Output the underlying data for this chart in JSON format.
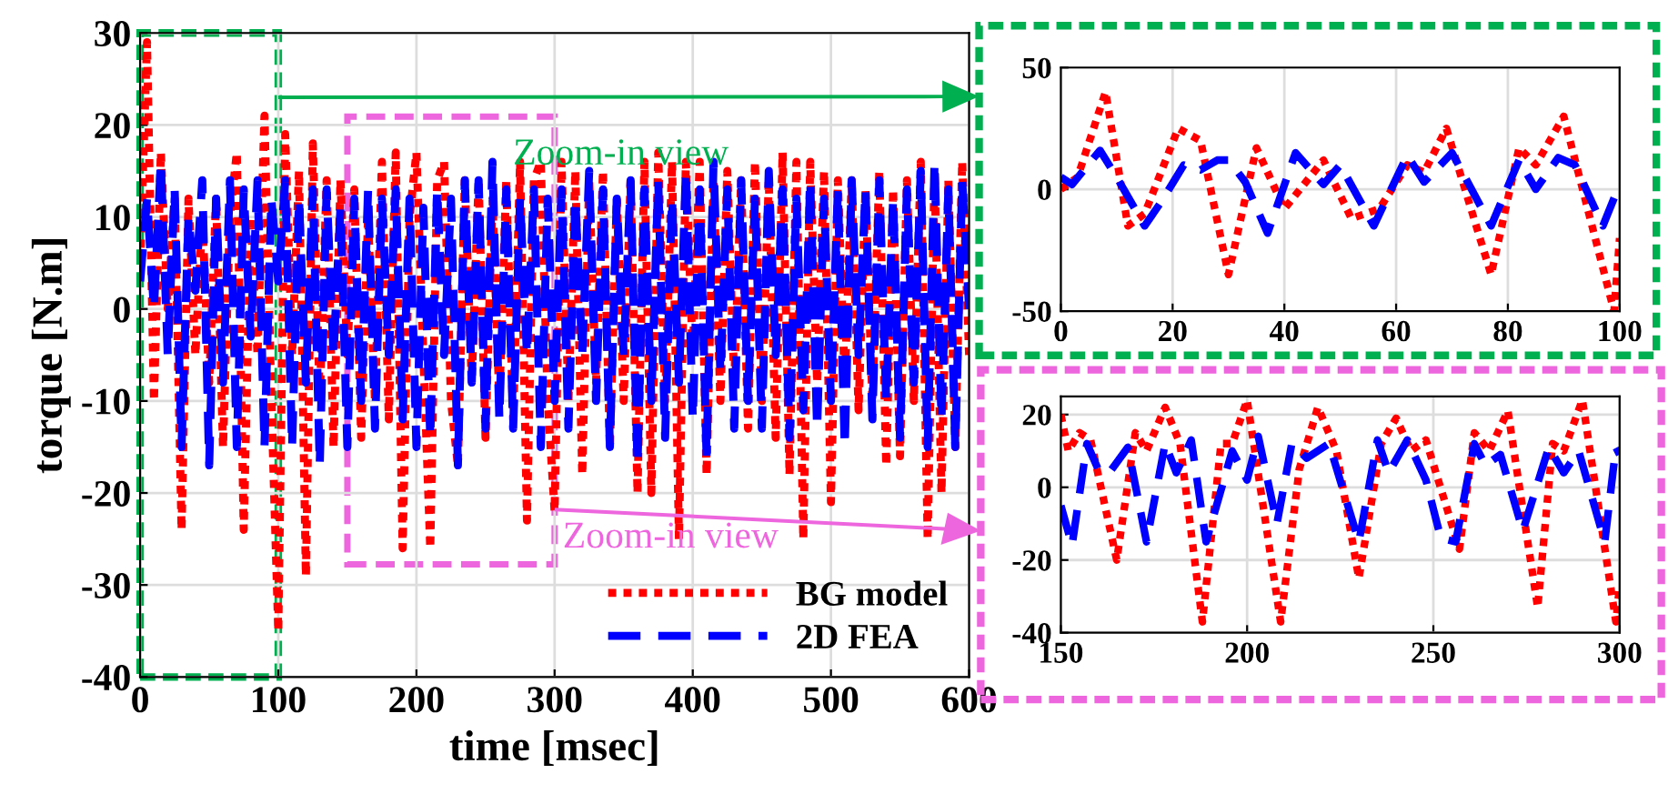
{
  "chart_data": [
    {
      "type": "line",
      "xlabel": "time [msec]",
      "ylabel": "torque [N.m]",
      "xlim": [
        0,
        600
      ],
      "xticks": [
        0,
        100,
        200,
        300,
        400,
        500,
        600
      ],
      "ylim": [
        -40,
        30
      ],
      "yticks": [
        {
          "value": -40,
          "label": "-40"
        },
        {
          "value": -30,
          "label": "-30"
        },
        {
          "value": -20,
          "label": "-20"
        },
        {
          "value": -10,
          "label": "-10"
        },
        0,
        10,
        20,
        30
      ],
      "grid": true,
      "legend": "bottom right",
      "annotations": [
        "Zoom-in view",
        "Zoom-in view"
      ],
      "x": [
        0,
        5,
        10,
        15,
        20,
        25,
        30,
        35,
        40,
        45,
        50,
        55,
        60,
        65,
        70,
        75,
        80,
        85,
        90,
        95,
        100,
        105,
        110,
        115,
        120,
        125,
        130,
        135,
        140,
        145,
        150,
        155,
        160,
        165,
        170,
        175,
        180,
        185,
        190,
        195,
        200,
        205,
        210,
        215,
        220,
        225,
        230,
        235,
        240,
        245,
        250,
        255,
        260,
        265,
        270,
        275,
        280,
        285,
        290,
        295,
        300,
        305,
        310,
        315,
        320,
        325,
        330,
        335,
        340,
        345,
        350,
        355,
        360,
        365,
        370,
        375,
        380,
        385,
        390,
        395,
        400,
        405,
        410,
        415,
        420,
        425,
        430,
        435,
        440,
        445,
        450,
        455,
        460,
        465,
        470,
        475,
        480,
        485,
        490,
        495,
        500,
        505,
        510,
        515,
        520,
        525,
        530,
        535,
        540,
        545,
        550,
        555,
        560,
        565,
        570,
        575,
        580,
        585,
        590,
        595,
        600
      ],
      "series": [
        {
          "name": "BG model",
          "color": "#ff0000",
          "line_style": "dotted",
          "values": [
            5,
            29,
            -10,
            17,
            0,
            12,
            -24,
            12,
            -5,
            10,
            -8,
            12,
            -15,
            10,
            17,
            -24,
            10,
            -5,
            21,
            -10,
            -35,
            19,
            -5,
            15,
            -29,
            18,
            -10,
            14,
            -15,
            14,
            -5,
            13,
            -14,
            10,
            -10,
            16,
            -12,
            17,
            -26,
            10,
            17,
            -5,
            -26,
            14,
            16,
            -10,
            -17,
            14,
            -8,
            14,
            -14,
            12,
            -10,
            14,
            -12,
            16,
            -23,
            14,
            16,
            -10,
            -22,
            16,
            -10,
            15,
            -18,
            14,
            -8,
            15,
            -15,
            12,
            -10,
            14,
            -20,
            16,
            -20,
            17,
            -10,
            16,
            -25,
            16,
            -5,
            16,
            -18,
            14,
            -10,
            15,
            -8,
            14,
            -13,
            16,
            -10,
            14,
            -14,
            17,
            -18,
            16,
            -25,
            16,
            -8,
            15,
            -21,
            14,
            -8,
            14,
            -11,
            13,
            -10,
            15,
            -17,
            13,
            -16,
            14,
            -10,
            16,
            -25,
            15,
            -20,
            14,
            -15,
            16,
            -5
          ]
        },
        {
          "name": "2D FEA",
          "color": "#0000ff",
          "line_style": "dashed",
          "values": [
            3,
            12,
            0,
            16,
            -5,
            13,
            -15,
            10,
            2,
            14,
            -17,
            12,
            -8,
            14,
            -15,
            13,
            -3,
            14,
            -15,
            12,
            3,
            14,
            -15,
            12,
            -8,
            13,
            -17,
            13,
            -5,
            11,
            -15,
            12,
            -10,
            13,
            -13,
            12,
            -5,
            13,
            -12,
            12,
            -15,
            11,
            -14,
            13,
            -5,
            12,
            -17,
            14,
            -8,
            14,
            -13,
            16,
            -12,
            13,
            -13,
            12,
            -5,
            13,
            -15,
            12,
            -10,
            13,
            -13,
            12,
            -5,
            15,
            -10,
            13,
            -15,
            12,
            -5,
            14,
            -17,
            13,
            -10,
            14,
            -14,
            12,
            -8,
            15,
            -12,
            13,
            -16,
            16,
            -7,
            13,
            -13,
            14,
            -10,
            12,
            -13,
            15,
            -5,
            13,
            -14,
            12,
            -11,
            14,
            -13,
            12,
            -10,
            13,
            -15,
            14,
            -5,
            13,
            -12,
            14,
            -10,
            12,
            -14,
            13,
            -8,
            15,
            -15,
            16,
            -12,
            13,
            -15,
            14,
            0
          ]
        }
      ]
    },
    {
      "type": "line",
      "xlim": [
        0,
        100
      ],
      "xticks": [
        0,
        20,
        40,
        60,
        80,
        100
      ],
      "ylim": [
        -50,
        50
      ],
      "yticks": [
        {
          "value": -50,
          "label": "-50"
        },
        0,
        50
      ],
      "grid": true,
      "series": [
        {
          "color": "#ff0000",
          "line_style": "dotted",
          "x": [
            0,
            3,
            8,
            12,
            15,
            21,
            25,
            30,
            35,
            40,
            47,
            52,
            57,
            62,
            65,
            69,
            77,
            82,
            85,
            90,
            99,
            100
          ],
          "values": [
            0,
            5,
            40,
            -15,
            -10,
            25,
            20,
            -35,
            17,
            -8,
            12,
            -12,
            -8,
            10,
            7,
            25,
            -35,
            17,
            10,
            30,
            -50,
            -20
          ]
        },
        {
          "color": "#0000ff",
          "line_style": "dashed",
          "x": [
            0,
            2,
            7,
            10,
            15,
            18,
            22,
            25,
            28,
            30,
            33,
            37,
            42,
            47,
            50,
            56,
            62,
            65,
            70,
            77,
            82,
            85,
            89,
            92,
            97,
            100
          ],
          "values": [
            5,
            2,
            16,
            5,
            -15,
            -5,
            10,
            8,
            12,
            12,
            3,
            -18,
            15,
            2,
            10,
            -15,
            14,
            3,
            15,
            -15,
            12,
            0,
            13,
            10,
            -15,
            2
          ]
        }
      ]
    },
    {
      "type": "line",
      "xlim": [
        150,
        300
      ],
      "xticks": [
        150,
        200,
        250,
        300
      ],
      "ylim": [
        -40,
        25
      ],
      "yticks": [
        {
          "value": -40,
          "label": "-40"
        },
        {
          "value": -20,
          "label": "-20"
        },
        0,
        20
      ],
      "grid": true,
      "series": [
        {
          "color": "#ff0000",
          "line_style": "dotted",
          "x": [
            150,
            152,
            155,
            158,
            165,
            170,
            173,
            178,
            182,
            188,
            193,
            196,
            200,
            209,
            214,
            219,
            224,
            230,
            236,
            240,
            244,
            248,
            257,
            261,
            265,
            270,
            278,
            282,
            285,
            290,
            299,
            300
          ],
          "values": [
            20,
            10,
            15,
            13,
            -20,
            15,
            10,
            22,
            12,
            -37,
            12,
            12,
            24,
            -37,
            5,
            22,
            10,
            -25,
            12,
            19,
            10,
            13,
            -17,
            15,
            10,
            21,
            -33,
            12,
            10,
            24,
            -37,
            -27
          ]
        },
        {
          "color": "#0000ff",
          "line_style": "dashed",
          "x": [
            150,
            153,
            157,
            160,
            163,
            168,
            173,
            178,
            181,
            185,
            189,
            196,
            200,
            203,
            208,
            212,
            216,
            222,
            230,
            235,
            238,
            243,
            248,
            252,
            256,
            261,
            264,
            268,
            274,
            281,
            285,
            289,
            296,
            299,
            300
          ],
          "values": [
            -5,
            -16,
            12,
            5,
            4,
            11,
            -15,
            12,
            4,
            13,
            -15,
            10,
            2,
            14,
            -10,
            12,
            8,
            12,
            -15,
            13,
            4,
            13,
            2,
            -14,
            -15,
            12,
            6,
            9,
            -12,
            11,
            4,
            10,
            -15,
            11,
            9
          ]
        }
      ]
    }
  ]
}
